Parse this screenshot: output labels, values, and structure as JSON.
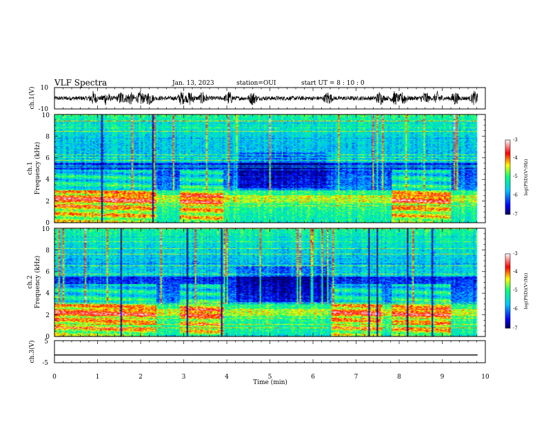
{
  "header": {
    "title": "VLF Spectra",
    "date": "Jan. 13, 2023",
    "station": "station=OUI",
    "start": "start  UT =  8 : 10 : 0"
  },
  "chart_data": [
    {
      "type": "line",
      "panel": "ch1-waveform",
      "ylabel": "ch.1(V)",
      "ylim": [
        -10,
        10
      ],
      "ytick_labels": [
        "10",
        "-10"
      ],
      "xlim": [
        0,
        10
      ],
      "baseline": 0,
      "bursts_min": [
        0.9,
        1.2,
        1.55,
        1.75,
        2.0,
        2.2,
        2.95,
        3.15,
        3.45,
        4.05,
        4.6,
        6.35,
        7.55,
        7.9,
        8.1,
        8.6,
        8.9,
        9.3,
        9.75
      ]
    },
    {
      "type": "heatmap",
      "panel": "ch1-spectrogram",
      "ylabel": "ch.1\nFrequency (kHz)",
      "ylabel_line1": "ch.1",
      "ylabel_line2": "Frequency (kHz)",
      "ylim": [
        0,
        10
      ],
      "ytick_labels": [
        "0",
        "2",
        "4",
        "6",
        "8",
        "10"
      ],
      "xlim": [
        0,
        10
      ],
      "colorbar": {
        "label": "log(PSD)(V²/Hz)",
        "range": [
          -7,
          -3
        ],
        "tick_labels": [
          "-3",
          "-4",
          "-5",
          "-6",
          "-7"
        ]
      }
    },
    {
      "type": "heatmap",
      "panel": "ch2-spectrogram",
      "ylabel": "ch.2\nFrequency (kHz)",
      "ylabel_line1": "ch.2",
      "ylabel_line2": "Frequency (kHz)",
      "ylim": [
        0,
        10
      ],
      "ytick_labels": [
        "0",
        "2",
        "4",
        "6",
        "8",
        "10"
      ],
      "xlim": [
        0,
        10
      ],
      "colorbar": {
        "label": "log(PSD)(V²/Hz)",
        "range": [
          -7,
          -3
        ],
        "tick_labels": [
          "-3",
          "-4",
          "-5",
          "-6",
          "-7"
        ]
      }
    },
    {
      "type": "line",
      "panel": "ch3-waveform",
      "ylabel": "ch.3(V)",
      "ylim": [
        -5,
        5
      ],
      "ytick_labels": [
        "5",
        "-5"
      ],
      "xlim": [
        0,
        10
      ],
      "value": -1.5
    }
  ],
  "xaxis": {
    "label": "Time (min)",
    "tick_labels": [
      "0",
      "1",
      "2",
      "3",
      "4",
      "5",
      "6",
      "7",
      "8",
      "9",
      "10"
    ]
  },
  "colors": {
    "trace": "#000000",
    "colormap": [
      "#000060",
      "#0000ff",
      "#00c8ff",
      "#00ff80",
      "#ffff00",
      "#ff0000",
      "#ffffff"
    ]
  }
}
